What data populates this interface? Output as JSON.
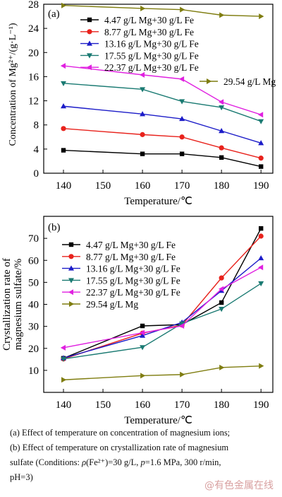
{
  "chart_data": [
    {
      "type": "line",
      "panel_label": "(a)",
      "ylabel": "Concentration of Mg²⁺/(g·L⁻¹)",
      "xlabel": "Temperature/℃",
      "xlim": [
        135,
        193
      ],
      "ylim": [
        0,
        28
      ],
      "x_ticks": [
        140,
        150,
        160,
        170,
        180,
        190
      ],
      "y_ticks": [
        0,
        4,
        8,
        12,
        16,
        20,
        24,
        28
      ],
      "x": [
        140,
        160,
        170,
        180,
        190
      ],
      "series": [
        {
          "name": "4.47 g/L Mg+30 g/L Fe",
          "color": "#000000",
          "marker": "square",
          "values": [
            3.8,
            3.2,
            3.2,
            2.6,
            1.1
          ]
        },
        {
          "name": "8.77 g/L Mg+30 g/L Fe",
          "color": "#e8221c",
          "marker": "circle",
          "values": [
            7.4,
            6.4,
            6.0,
            4.2,
            2.5
          ]
        },
        {
          "name": "13.16 g/L Mg+30 g/L Fe",
          "color": "#1c1cc8",
          "marker": "triangle-up",
          "values": [
            11.1,
            9.8,
            9.0,
            7.0,
            5.0
          ]
        },
        {
          "name": "17.55 g/L Mg+30 g/L Fe",
          "color": "#1a7a72",
          "marker": "triangle-down",
          "values": [
            14.9,
            13.9,
            11.9,
            10.9,
            8.6
          ]
        },
        {
          "name": "22.37 g/L Mg+30 g/L Fe",
          "color": "#e021e0",
          "marker": "triangle-left",
          "values": [
            17.8,
            16.3,
            15.6,
            11.8,
            9.7
          ]
        },
        {
          "name": "29.54 g/L Mg",
          "color": "#7f7d10",
          "marker": "triangle-right",
          "values": [
            27.8,
            27.3,
            27.1,
            26.2,
            26.0
          ]
        }
      ],
      "grid": false,
      "legend": "upper-left"
    },
    {
      "type": "line",
      "panel_label": "(b)",
      "ylabel": "Crystallization rate of magnesium sulfate/%",
      "xlabel": "Temperature/℃",
      "xlim": [
        135,
        193
      ],
      "ylim": [
        0,
        80
      ],
      "x_ticks": [
        140,
        150,
        160,
        170,
        180,
        190
      ],
      "y_ticks": [
        10,
        20,
        30,
        40,
        50,
        60,
        70
      ],
      "x": [
        140,
        160,
        170,
        180,
        190
      ],
      "series": [
        {
          "name": "4.47 g/L Mg+30 g/L Fe",
          "color": "#000000",
          "marker": "square",
          "values": [
            15.5,
            30.2,
            30.8,
            40.8,
            74.5
          ]
        },
        {
          "name": "8.77 g/L Mg+30 g/L Fe",
          "color": "#e8221c",
          "marker": "circle",
          "values": [
            15.2,
            26.9,
            30.6,
            52.0,
            71.0
          ]
        },
        {
          "name": "13.16 g/L Mg+30 g/L Fe",
          "color": "#1c1cc8",
          "marker": "triangle-up",
          "values": [
            15.6,
            25.8,
            31.8,
            46.2,
            61.0
          ]
        },
        {
          "name": "17.55 g/L Mg+30 g/L Fe",
          "color": "#1a7a72",
          "marker": "triangle-down",
          "values": [
            15.2,
            20.5,
            31.3,
            37.9,
            49.5
          ]
        },
        {
          "name": "22.37 g/L Mg+30 g/L Fe",
          "color": "#e021e0",
          "marker": "triangle-left",
          "values": [
            20.3,
            27.1,
            30.2,
            47.0,
            56.8
          ]
        },
        {
          "name": "29.54 g/L Mg",
          "color": "#7f7d10",
          "marker": "triangle-right",
          "values": [
            5.7,
            7.6,
            8.1,
            11.3,
            12.0
          ]
        }
      ],
      "grid": false,
      "legend": "upper-left"
    }
  ],
  "caption": {
    "line_a": "(a) Effect of temperature on concentration of magnesium ions;",
    "line_b1": "(b) Effect of temperature on crystallization rate of magnesium",
    "line_b2_pre": "sulfate (Conditions: ",
    "line_b2_rho": "ρ",
    "line_b2_mid": "(Fe²⁺)=30  g/L, ",
    "line_b2_p": "p",
    "line_b2_post": "=1.6  MPa,  300  r/min,",
    "line_c": "pH=3)"
  },
  "watermark": "@有色金属在线"
}
